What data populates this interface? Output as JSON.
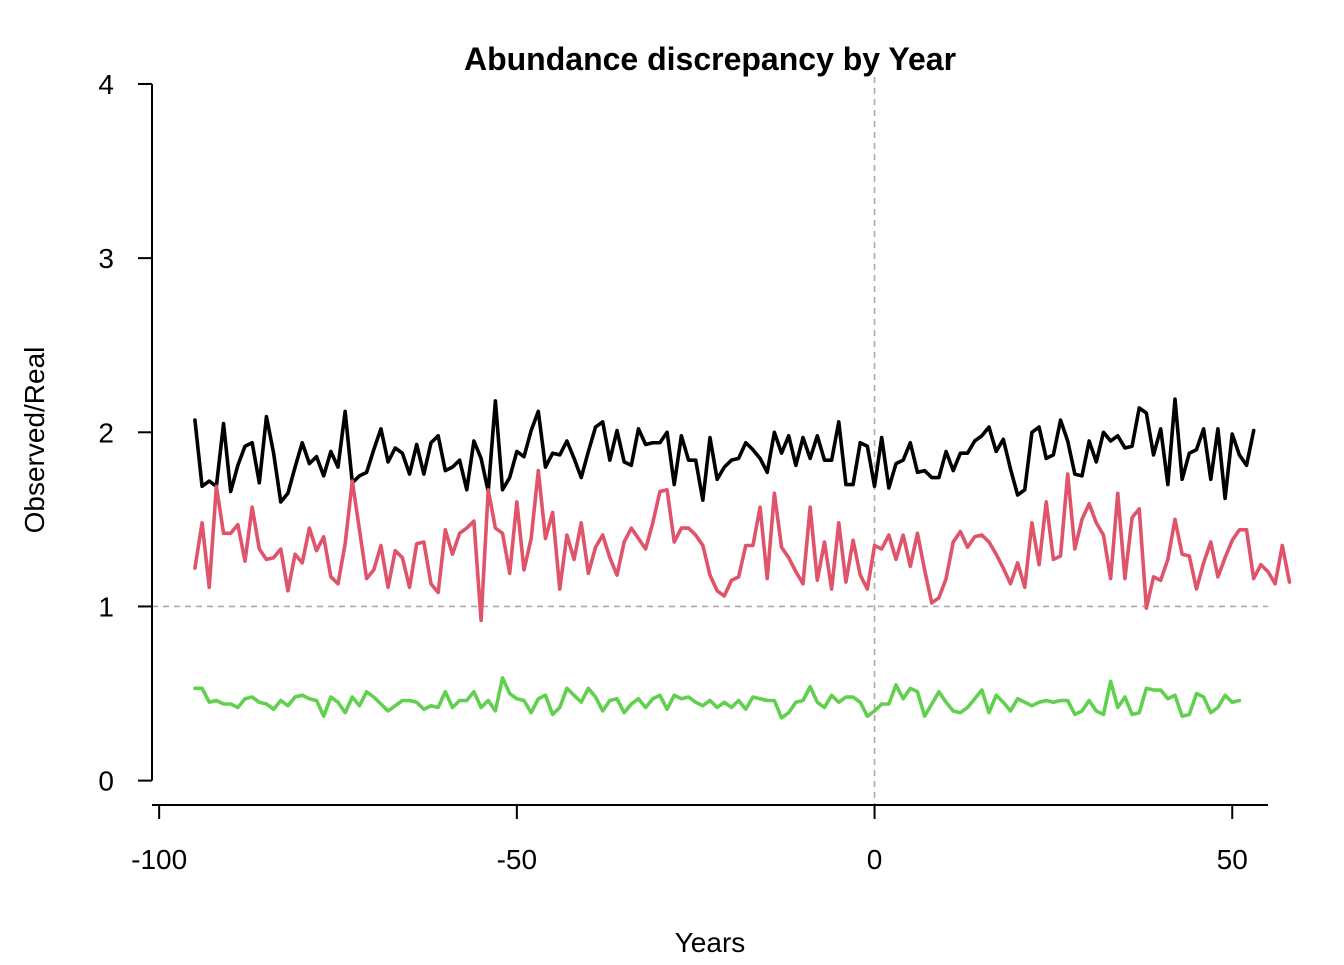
{
  "chart_data": {
    "type": "line",
    "title": "Abundance discrepancy by Year",
    "xlabel": "Years",
    "ylabel": "Observed/Real",
    "xlim": [
      -101,
      55
    ],
    "ylim": [
      -0.14,
      4.04
    ],
    "xticks": [
      -100,
      -50,
      0,
      50
    ],
    "yticks": [
      0,
      1,
      2,
      3,
      4
    ],
    "xtick_labels": [
      "-100",
      "-50",
      "0",
      "50"
    ],
    "ytick_labels": [
      "0",
      "1",
      "2",
      "3",
      "4"
    ],
    "grid": false,
    "legend": "none",
    "reference_lines": [
      {
        "orientation": "horizontal",
        "value": 1,
        "style": "dashed",
        "color": "#aaaaaa"
      },
      {
        "orientation": "vertical",
        "value": 0,
        "style": "dashed",
        "color": "#aaaaaa"
      }
    ],
    "x_start": -95,
    "x_step": 1,
    "series": [
      {
        "color": "#000000",
        "values": [
          2.07,
          1.69,
          1.72,
          1.69,
          2.05,
          1.66,
          1.81,
          1.92,
          1.94,
          1.71,
          2.09,
          1.88,
          1.6,
          1.65,
          1.8,
          1.94,
          1.82,
          1.86,
          1.75,
          1.89,
          1.8,
          2.12,
          1.71,
          1.75,
          1.77,
          1.9,
          2.02,
          1.83,
          1.91,
          1.88,
          1.76,
          1.93,
          1.76,
          1.94,
          1.98,
          1.78,
          1.8,
          1.84,
          1.67,
          1.95,
          1.85,
          1.66,
          2.18,
          1.67,
          1.74,
          1.89,
          1.86,
          2.01,
          2.12,
          1.8,
          1.88,
          1.87,
          1.95,
          1.85,
          1.74,
          1.89,
          2.03,
          2.06,
          1.84,
          2.01,
          1.83,
          1.81,
          2.02,
          1.93,
          1.94,
          1.94,
          2.0,
          1.7,
          1.98,
          1.84,
          1.84,
          1.61,
          1.97,
          1.73,
          1.8,
          1.84,
          1.85,
          1.94,
          1.9,
          1.85,
          1.77,
          2.0,
          1.88,
          1.98,
          1.81,
          1.97,
          1.85,
          1.98,
          1.84,
          1.84,
          2.06,
          1.7,
          1.7,
          1.94,
          1.92,
          1.69,
          1.97,
          1.68,
          1.82,
          1.84,
          1.94,
          1.77,
          1.78,
          1.74,
          1.74,
          1.89,
          1.78,
          1.88,
          1.88,
          1.95,
          1.98,
          2.03,
          1.89,
          1.96,
          1.79,
          1.64,
          1.67,
          2.0,
          2.03,
          1.85,
          1.87,
          2.07,
          1.95,
          1.76,
          1.75,
          1.95,
          1.83,
          2.0,
          1.95,
          1.98,
          1.91,
          1.92,
          2.14,
          2.11,
          1.87,
          2.02,
          1.7,
          2.19,
          1.73,
          1.88,
          1.9,
          2.02,
          1.73,
          2.02,
          1.62,
          1.99,
          1.87,
          1.81,
          2.01
        ]
      },
      {
        "color": "#df536b",
        "values": [
          1.22,
          1.48,
          1.11,
          1.69,
          1.42,
          1.42,
          1.47,
          1.26,
          1.57,
          1.33,
          1.27,
          1.28,
          1.33,
          1.09,
          1.3,
          1.25,
          1.45,
          1.32,
          1.4,
          1.17,
          1.13,
          1.36,
          1.72,
          1.44,
          1.16,
          1.21,
          1.35,
          1.11,
          1.32,
          1.28,
          1.11,
          1.36,
          1.37,
          1.13,
          1.08,
          1.44,
          1.3,
          1.42,
          1.45,
          1.49,
          0.92,
          1.67,
          1.45,
          1.42,
          1.19,
          1.6,
          1.21,
          1.39,
          1.78,
          1.39,
          1.54,
          1.1,
          1.41,
          1.27,
          1.48,
          1.19,
          1.34,
          1.41,
          1.28,
          1.18,
          1.37,
          1.45,
          1.39,
          1.33,
          1.48,
          1.66,
          1.67,
          1.37,
          1.45,
          1.45,
          1.41,
          1.35,
          1.18,
          1.09,
          1.06,
          1.15,
          1.17,
          1.35,
          1.35,
          1.57,
          1.16,
          1.65,
          1.34,
          1.28,
          1.2,
          1.13,
          1.57,
          1.15,
          1.37,
          1.1,
          1.48,
          1.14,
          1.38,
          1.18,
          1.1,
          1.35,
          1.33,
          1.41,
          1.27,
          1.41,
          1.23,
          1.42,
          1.21,
          1.02,
          1.05,
          1.16,
          1.37,
          1.43,
          1.34,
          1.4,
          1.41,
          1.37,
          1.3,
          1.22,
          1.13,
          1.25,
          1.11,
          1.48,
          1.24,
          1.6,
          1.27,
          1.29,
          1.76,
          1.33,
          1.5,
          1.59,
          1.48,
          1.41,
          1.16,
          1.65,
          1.16,
          1.51,
          1.56,
          0.99,
          1.17,
          1.15,
          1.27,
          1.5,
          1.3,
          1.29,
          1.1,
          1.25,
          1.37,
          1.17,
          1.28,
          1.38,
          1.44,
          1.44,
          1.16,
          1.24,
          1.2,
          1.13,
          1.35,
          1.14
        ]
      },
      {
        "color": "#61d04f",
        "values": [
          0.53,
          0.53,
          0.45,
          0.46,
          0.44,
          0.44,
          0.42,
          0.47,
          0.48,
          0.45,
          0.44,
          0.41,
          0.46,
          0.43,
          0.48,
          0.49,
          0.47,
          0.46,
          0.37,
          0.48,
          0.45,
          0.39,
          0.48,
          0.43,
          0.51,
          0.48,
          0.44,
          0.4,
          0.43,
          0.46,
          0.46,
          0.45,
          0.41,
          0.43,
          0.42,
          0.51,
          0.42,
          0.46,
          0.46,
          0.51,
          0.42,
          0.46,
          0.4,
          0.59,
          0.5,
          0.47,
          0.46,
          0.39,
          0.47,
          0.49,
          0.38,
          0.42,
          0.53,
          0.49,
          0.45,
          0.53,
          0.48,
          0.4,
          0.46,
          0.47,
          0.39,
          0.44,
          0.47,
          0.42,
          0.47,
          0.49,
          0.41,
          0.49,
          0.47,
          0.48,
          0.45,
          0.43,
          0.46,
          0.42,
          0.45,
          0.42,
          0.46,
          0.41,
          0.48,
          0.47,
          0.46,
          0.46,
          0.36,
          0.39,
          0.45,
          0.46,
          0.54,
          0.45,
          0.42,
          0.49,
          0.45,
          0.48,
          0.48,
          0.45,
          0.37,
          0.4,
          0.44,
          0.44,
          0.55,
          0.47,
          0.53,
          0.51,
          0.37,
          0.44,
          0.51,
          0.45,
          0.4,
          0.39,
          0.42,
          0.47,
          0.52,
          0.39,
          0.49,
          0.45,
          0.4,
          0.47,
          0.45,
          0.43,
          0.45,
          0.46,
          0.45,
          0.46,
          0.46,
          0.38,
          0.4,
          0.46,
          0.4,
          0.38,
          0.57,
          0.42,
          0.48,
          0.38,
          0.39,
          0.53,
          0.52,
          0.52,
          0.47,
          0.49,
          0.37,
          0.38,
          0.5,
          0.48,
          0.39,
          0.42,
          0.49,
          0.45,
          0.46
        ]
      }
    ]
  }
}
